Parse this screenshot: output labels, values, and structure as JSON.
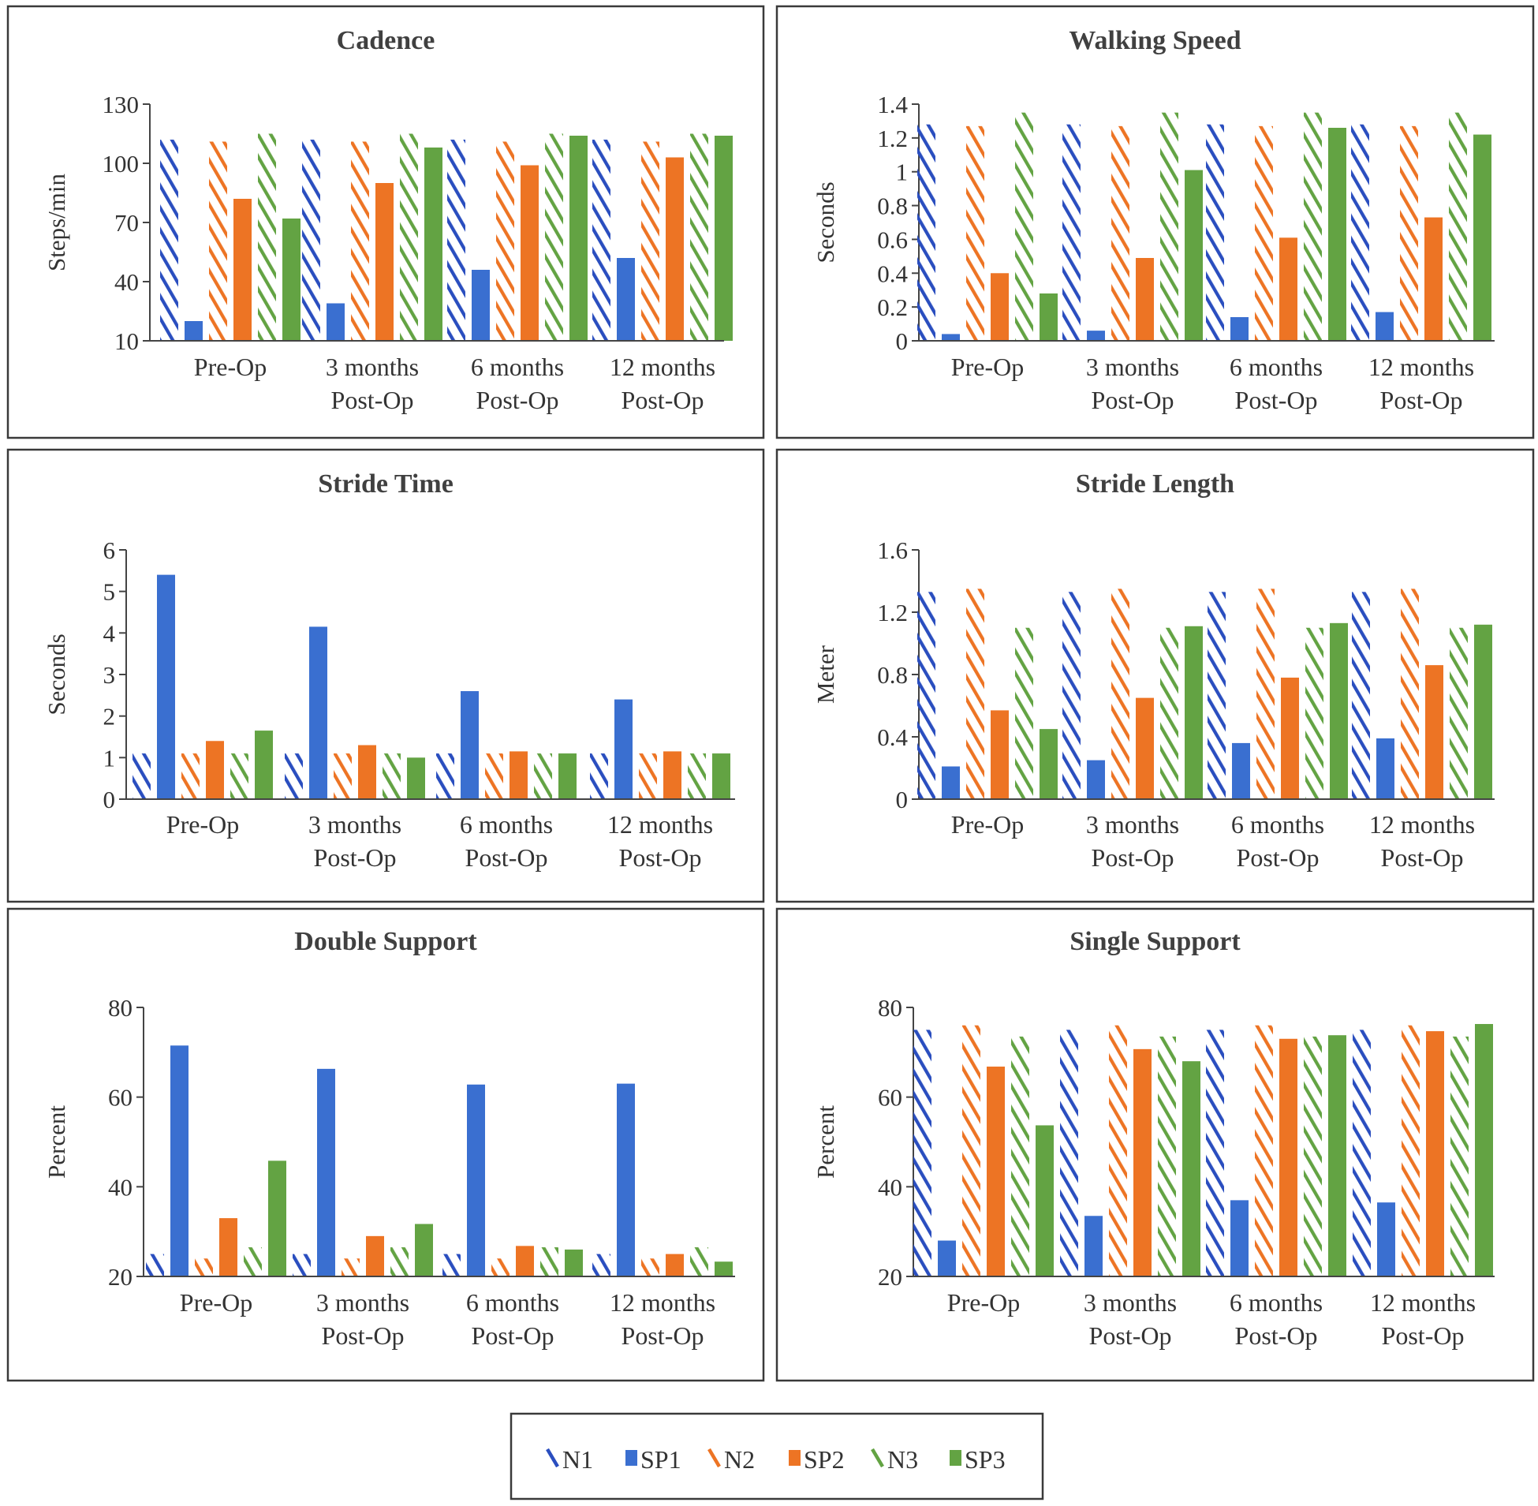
{
  "categories": [
    "Pre-Op",
    "3 months Post-Op",
    "6 months Post-Op",
    "12 months Post-Op"
  ],
  "category_lines": [
    [
      "Pre-Op"
    ],
    [
      "3 months",
      "Post-Op"
    ],
    [
      "6 months",
      "Post-Op"
    ],
    [
      "12 months",
      "Post-Op"
    ]
  ],
  "colors": {
    "N1": "#2a4ebf",
    "SP1": "#3a6fd0",
    "N2": "#ed7424",
    "SP2": "#ed7424",
    "N3": "#63a343",
    "SP3": "#63a343"
  },
  "legend": {
    "items": [
      {
        "key": "N1",
        "label": "N1",
        "pattern": "hatch",
        "color": "#2a4ebf"
      },
      {
        "key": "SP1",
        "label": "SP1",
        "pattern": "solid",
        "color": "#3a6fd0"
      },
      {
        "key": "N2",
        "label": "N2",
        "pattern": "hatch",
        "color": "#ed7424"
      },
      {
        "key": "SP2",
        "label": "SP2",
        "pattern": "solid",
        "color": "#ed7424"
      },
      {
        "key": "N3",
        "label": "N3",
        "pattern": "hatch",
        "color": "#63a343"
      },
      {
        "key": "SP3",
        "label": "SP3",
        "pattern": "solid",
        "color": "#63a343"
      }
    ]
  },
  "chart_data": [
    {
      "type": "bar",
      "id": "cadence",
      "title": "Cadence",
      "ylabel": "Steps/min",
      "xlabel": "",
      "ylim": [
        10,
        130
      ],
      "yticks": [
        10,
        40,
        70,
        100,
        130
      ],
      "yticklabels": [
        "10",
        "40",
        "70",
        "100",
        "130"
      ],
      "categories": [
        "Pre-Op",
        "3 months Post-Op",
        "6 months Post-Op",
        "12 months Post-Op"
      ],
      "series": [
        {
          "name": "N1",
          "values": [
            112,
            112,
            112,
            112
          ]
        },
        {
          "name": "SP1",
          "values": [
            20,
            29,
            46,
            52
          ]
        },
        {
          "name": "N2",
          "values": [
            111,
            111,
            111,
            111
          ]
        },
        {
          "name": "SP2",
          "values": [
            82,
            90,
            99,
            103
          ]
        },
        {
          "name": "N3",
          "values": [
            115,
            115,
            115,
            115
          ]
        },
        {
          "name": "SP3",
          "values": [
            72,
            108,
            114,
            114
          ]
        }
      ]
    },
    {
      "type": "bar",
      "id": "walking-speed",
      "title": "Walking Speed",
      "ylabel": "Seconds",
      "xlabel": "",
      "ylim": [
        0,
        1.4
      ],
      "yticks": [
        0,
        0.2,
        0.4,
        0.6,
        0.8,
        1,
        1.2,
        1.4
      ],
      "yticklabels": [
        "0",
        "0.2",
        "0.4",
        "0.6",
        "0.8",
        "1",
        "1.2",
        "1.4"
      ],
      "categories": [
        "Pre-Op",
        "3 months Post-Op",
        "6 months Post-Op",
        "12 months Post-Op"
      ],
      "series": [
        {
          "name": "N1",
          "values": [
            1.28,
            1.28,
            1.28,
            1.28
          ]
        },
        {
          "name": "SP1",
          "values": [
            0.04,
            0.06,
            0.14,
            0.17
          ]
        },
        {
          "name": "N2",
          "values": [
            1.27,
            1.27,
            1.27,
            1.27
          ]
        },
        {
          "name": "SP2",
          "values": [
            0.4,
            0.49,
            0.61,
            0.73
          ]
        },
        {
          "name": "N3",
          "values": [
            1.35,
            1.35,
            1.35,
            1.35
          ]
        },
        {
          "name": "SP3",
          "values": [
            0.28,
            1.01,
            1.26,
            1.22
          ]
        }
      ]
    },
    {
      "type": "bar",
      "id": "stride-time",
      "title": "Stride Time",
      "ylabel": "Seconds",
      "xlabel": "",
      "ylim": [
        0,
        6
      ],
      "yticks": [
        0,
        1,
        2,
        3,
        4,
        5,
        6
      ],
      "yticklabels": [
        "0",
        "1",
        "2",
        "3",
        "4",
        "5",
        "6"
      ],
      "categories": [
        "Pre-Op",
        "3 months Post-Op",
        "6 months Post-Op",
        "12 months Post-Op"
      ],
      "series": [
        {
          "name": "N1",
          "values": [
            1.1,
            1.1,
            1.1,
            1.1
          ]
        },
        {
          "name": "SP1",
          "values": [
            5.4,
            4.15,
            2.6,
            2.4
          ]
        },
        {
          "name": "N2",
          "values": [
            1.1,
            1.1,
            1.1,
            1.1
          ]
        },
        {
          "name": "SP2",
          "values": [
            1.4,
            1.3,
            1.15,
            1.15
          ]
        },
        {
          "name": "N3",
          "values": [
            1.1,
            1.1,
            1.1,
            1.1
          ]
        },
        {
          "name": "SP3",
          "values": [
            1.65,
            1.0,
            1.1,
            1.1
          ]
        }
      ]
    },
    {
      "type": "bar",
      "id": "stride-length",
      "title": "Stride Length",
      "ylabel": "Meter",
      "xlabel": "",
      "ylim": [
        0,
        1.6
      ],
      "yticks": [
        0,
        0.4,
        0.8,
        1.2,
        1.6
      ],
      "yticklabels": [
        "0",
        "0.4",
        "0.8",
        "1.2",
        "1.6"
      ],
      "categories": [
        "Pre-Op",
        "3 months Post-Op",
        "6 months Post-Op",
        "12 months Post-Op"
      ],
      "series": [
        {
          "name": "N1",
          "values": [
            1.33,
            1.33,
            1.33,
            1.33
          ]
        },
        {
          "name": "SP1",
          "values": [
            0.21,
            0.25,
            0.36,
            0.39
          ]
        },
        {
          "name": "N2",
          "values": [
            1.35,
            1.35,
            1.35,
            1.35
          ]
        },
        {
          "name": "SP2",
          "values": [
            0.57,
            0.65,
            0.78,
            0.86
          ]
        },
        {
          "name": "N3",
          "values": [
            1.1,
            1.1,
            1.1,
            1.1
          ]
        },
        {
          "name": "SP3",
          "values": [
            0.45,
            1.11,
            1.13,
            1.12
          ]
        }
      ]
    },
    {
      "type": "bar",
      "id": "double-support",
      "title": "Double Support",
      "ylabel": "Percent",
      "xlabel": "",
      "ylim": [
        20,
        80
      ],
      "yticks": [
        20,
        40,
        60,
        80
      ],
      "yticklabels": [
        "20",
        "40",
        "60",
        "80"
      ],
      "categories": [
        "Pre-Op",
        "3 months Post-Op",
        "6 months Post-Op",
        "12 months Post-Op"
      ],
      "series": [
        {
          "name": "N1",
          "values": [
            25,
            25,
            25,
            25
          ]
        },
        {
          "name": "SP1",
          "values": [
            71.5,
            66.3,
            62.8,
            63.0
          ]
        },
        {
          "name": "N2",
          "values": [
            24,
            24,
            24,
            24
          ]
        },
        {
          "name": "SP2",
          "values": [
            33,
            29,
            26.8,
            25
          ]
        },
        {
          "name": "N3",
          "values": [
            26.5,
            26.5,
            26.5,
            26.5
          ]
        },
        {
          "name": "SP3",
          "values": [
            45.8,
            31.7,
            26,
            23.3
          ]
        }
      ]
    },
    {
      "type": "bar",
      "id": "single-support",
      "title": "Single Support",
      "ylabel": "Percent",
      "xlabel": "",
      "ylim": [
        20,
        80
      ],
      "yticks": [
        20,
        40,
        60,
        80
      ],
      "yticklabels": [
        "20",
        "40",
        "60",
        "80"
      ],
      "categories": [
        "Pre-Op",
        "3 months Post-Op",
        "6 months Post-Op",
        "12 months Post-Op"
      ],
      "series": [
        {
          "name": "N1",
          "values": [
            75,
            75,
            75,
            75
          ]
        },
        {
          "name": "SP1",
          "values": [
            28,
            33.5,
            37,
            36.5
          ]
        },
        {
          "name": "N2",
          "values": [
            76,
            76,
            76,
            76
          ]
        },
        {
          "name": "SP2",
          "values": [
            66.8,
            70.7,
            73,
            74.7
          ]
        },
        {
          "name": "N3",
          "values": [
            73.5,
            73.5,
            73.5,
            73.5
          ]
        },
        {
          "name": "SP3",
          "values": [
            53.7,
            68,
            73.8,
            76.3
          ]
        }
      ]
    }
  ]
}
